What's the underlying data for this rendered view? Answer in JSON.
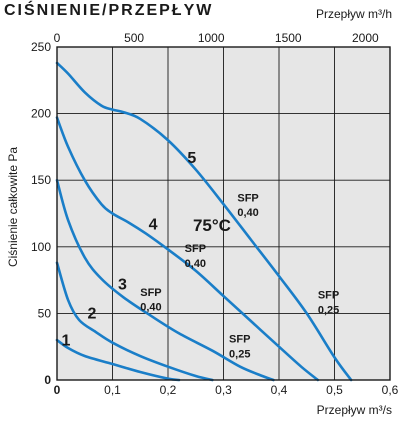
{
  "chart_data": {
    "type": "line",
    "title": "CIŚNIENIE/PRZEPŁYW",
    "ylabel": "Ciśnienie całkowite Pa",
    "xlabel": "Przepływ m³/s",
    "x2label": "Przepływ m³/h",
    "xlim": [
      0,
      0.6
    ],
    "ylim": [
      0,
      250
    ],
    "x2lim": [
      0,
      2160
    ],
    "xticks": [
      "0",
      "0,1",
      "0,2",
      "0,3",
      "0,4",
      "0,5",
      "0,6"
    ],
    "yticks": [
      "0",
      "50",
      "100",
      "150",
      "200",
      "250"
    ],
    "x2ticks": [
      "0",
      "500",
      "1000",
      "1500",
      "2000"
    ],
    "grid": true,
    "background": "#e6e6e6",
    "line_color": "#1a7ec8",
    "series": [
      {
        "name": "1",
        "x": [
          0,
          0.02,
          0.05,
          0.1,
          0.15,
          0.2,
          0.22
        ],
        "y": [
          30,
          24,
          18,
          12,
          6,
          1,
          0
        ]
      },
      {
        "name": "2",
        "x": [
          0,
          0.02,
          0.04,
          0.07,
          0.1,
          0.15,
          0.2,
          0.25,
          0.28
        ],
        "y": [
          88,
          60,
          45,
          36,
          28,
          18,
          10,
          3,
          0
        ]
      },
      {
        "name": "3",
        "x": [
          0,
          0.02,
          0.05,
          0.08,
          0.12,
          0.17,
          0.22,
          0.28,
          0.33,
          0.37,
          0.39
        ],
        "y": [
          150,
          120,
          92,
          76,
          62,
          48,
          35,
          22,
          10,
          3,
          0
        ]
      },
      {
        "name": "4",
        "x": [
          0,
          0.02,
          0.05,
          0.08,
          0.1,
          0.13,
          0.16,
          0.2,
          0.25,
          0.3,
          0.35,
          0.4,
          0.44,
          0.47
        ],
        "y": [
          197,
          175,
          150,
          132,
          125,
          118,
          110,
          98,
          82,
          63,
          44,
          25,
          10,
          0
        ]
      },
      {
        "name": "5",
        "x": [
          0,
          0.02,
          0.05,
          0.08,
          0.1,
          0.12,
          0.15,
          0.2,
          0.25,
          0.3,
          0.35,
          0.4,
          0.45,
          0.5,
          0.53
        ],
        "y": [
          238,
          230,
          216,
          206,
          203,
          201,
          196,
          180,
          158,
          132,
          105,
          78,
          50,
          17,
          0
        ]
      }
    ],
    "curve_labels": [
      {
        "text": "1",
        "x": 0.008,
        "y": 26
      },
      {
        "text": "2",
        "x": 0.055,
        "y": 46
      },
      {
        "text": "3",
        "x": 0.11,
        "y": 68
      },
      {
        "text": "4",
        "x": 0.165,
        "y": 113
      },
      {
        "text": "5",
        "x": 0.235,
        "y": 163
      }
    ],
    "annotations": [
      {
        "line1": "SFP",
        "line2": "0,40",
        "x": 0.15,
        "y1": 63,
        "y2": 52
      },
      {
        "line1": "SFP",
        "line2": "0,40",
        "x": 0.23,
        "y1": 96,
        "y2": 85
      },
      {
        "line1": "SFP",
        "line2": "0,40",
        "x": 0.325,
        "y1": 134,
        "y2": 123
      },
      {
        "line1": "SFP",
        "line2": "0,25",
        "x": 0.31,
        "y1": 28,
        "y2": 17
      },
      {
        "line1": "SFP",
        "line2": "0,25",
        "x": 0.47,
        "y1": 61,
        "y2": 50
      }
    ],
    "temperature_label": {
      "text": "75°C",
      "x": 0.245,
      "y": 112
    }
  }
}
